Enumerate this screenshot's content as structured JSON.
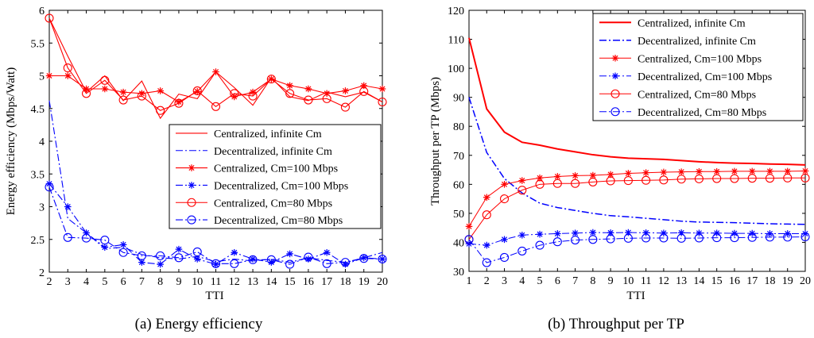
{
  "chart_data": [
    {
      "type": "line",
      "panel": "a",
      "caption": "(a)  Energy efficiency",
      "xlabel": "TTI",
      "ylabel": "Energy efficiency (Mbps/Watt)",
      "xlim": [
        2,
        20
      ],
      "ylim": [
        2,
        6
      ],
      "xticks": [
        2,
        3,
        4,
        5,
        6,
        7,
        8,
        9,
        10,
        11,
        12,
        13,
        14,
        15,
        16,
        17,
        18,
        19,
        20
      ],
      "yticks": [
        2,
        2.5,
        3,
        3.5,
        4,
        4.5,
        5,
        5.5,
        6
      ],
      "ytick_labels": [
        "2",
        "2.5",
        "3",
        "3.5",
        "4",
        "4.5",
        "5",
        "5.5",
        "6"
      ],
      "legend_position": "middle-right",
      "series": [
        {
          "name": "Centralized, infinite Cm",
          "color": "#ff0000",
          "dash": "solid",
          "marker": "none",
          "x": [
            2,
            3,
            4,
            5,
            6,
            7,
            8,
            9,
            10,
            11,
            12,
            13,
            14,
            15,
            16,
            17,
            18,
            19,
            20
          ],
          "y": [
            5.88,
            5.3,
            4.75,
            5.0,
            4.62,
            4.92,
            4.35,
            4.72,
            4.65,
            5.06,
            4.82,
            4.55,
            4.97,
            4.68,
            4.62,
            4.75,
            4.68,
            4.75,
            4.6
          ]
        },
        {
          "name": "Decentralized, infinite Cm",
          "color": "#0000ff",
          "dash": "dashdot",
          "marker": "none",
          "x": [
            2,
            3,
            4,
            5,
            6,
            7,
            8,
            9,
            10,
            11,
            12,
            13,
            14,
            15,
            16,
            17,
            18,
            19,
            20
          ],
          "y": [
            4.62,
            2.82,
            2.6,
            2.36,
            2.38,
            2.27,
            2.22,
            2.2,
            2.24,
            2.16,
            2.2,
            2.17,
            2.2,
            2.15,
            2.22,
            2.18,
            2.15,
            2.22,
            2.3
          ]
        },
        {
          "name": "Centralized, Cm=100 Mbps",
          "color": "#ff0000",
          "dash": "solid",
          "marker": "star",
          "x": [
            2,
            3,
            4,
            5,
            6,
            7,
            8,
            9,
            10,
            11,
            12,
            13,
            14,
            15,
            16,
            17,
            18,
            19,
            20
          ],
          "y": [
            5.0,
            5.0,
            4.8,
            4.8,
            4.75,
            4.73,
            4.77,
            4.6,
            4.76,
            5.06,
            4.68,
            4.75,
            4.95,
            4.85,
            4.8,
            4.73,
            4.77,
            4.85,
            4.8
          ]
        },
        {
          "name": "Decentralized, Cm=100 Mbps",
          "color": "#0000ff",
          "dash": "dashdot",
          "marker": "star",
          "x": [
            2,
            3,
            4,
            5,
            6,
            7,
            8,
            9,
            10,
            11,
            12,
            13,
            14,
            15,
            16,
            17,
            18,
            19,
            20
          ],
          "y": [
            3.35,
            3.0,
            2.6,
            2.38,
            2.42,
            2.15,
            2.12,
            2.35,
            2.2,
            2.12,
            2.3,
            2.2,
            2.15,
            2.28,
            2.2,
            2.3,
            2.12,
            2.22,
            2.2
          ]
        },
        {
          "name": "Centralized, Cm=80 Mbps",
          "color": "#ff0000",
          "dash": "solid",
          "marker": "circle",
          "x": [
            2,
            3,
            4,
            5,
            6,
            7,
            8,
            9,
            10,
            11,
            12,
            13,
            14,
            15,
            16,
            17,
            18,
            19,
            20
          ],
          "y": [
            5.88,
            5.12,
            4.73,
            4.93,
            4.63,
            4.69,
            4.47,
            4.58,
            4.77,
            4.53,
            4.73,
            4.69,
            4.95,
            4.73,
            4.63,
            4.65,
            4.52,
            4.76,
            4.6
          ]
        },
        {
          "name": "Decentralized, Cm=80 Mbps",
          "color": "#0000ff",
          "dash": "dashdot",
          "marker": "circle",
          "x": [
            2,
            3,
            4,
            5,
            6,
            7,
            8,
            9,
            10,
            11,
            12,
            13,
            14,
            15,
            16,
            17,
            18,
            19,
            20
          ],
          "y": [
            3.3,
            2.53,
            2.52,
            2.49,
            2.3,
            2.25,
            2.25,
            2.22,
            2.31,
            2.13,
            2.13,
            2.19,
            2.19,
            2.12,
            2.23,
            2.13,
            2.15,
            2.21,
            2.2
          ]
        }
      ]
    },
    {
      "type": "line",
      "panel": "b",
      "caption": "(b)  Throughput per TP",
      "xlabel": "TTI",
      "ylabel": "Throughput per TP (Mbps)",
      "xlim": [
        1,
        20
      ],
      "ylim": [
        30,
        120
      ],
      "xticks": [
        1,
        2,
        3,
        4,
        5,
        6,
        7,
        8,
        9,
        10,
        11,
        12,
        13,
        14,
        15,
        16,
        17,
        18,
        19,
        20
      ],
      "yticks": [
        30,
        40,
        50,
        60,
        70,
        80,
        90,
        100,
        110,
        120
      ],
      "ytick_labels": [
        "30",
        "40",
        "50",
        "60",
        "70",
        "80",
        "90",
        "100",
        "110",
        "120"
      ],
      "legend_position": "top-right",
      "series": [
        {
          "name": "Centralized, infinite Cm",
          "color": "#ff0000",
          "dash": "solid",
          "marker": "none",
          "width": 2,
          "x": [
            1,
            2,
            3,
            4,
            5,
            6,
            7,
            8,
            9,
            10,
            11,
            12,
            13,
            14,
            15,
            16,
            17,
            18,
            19,
            20
          ],
          "y": [
            110.5,
            86,
            78,
            74.5,
            73.5,
            72.2,
            71.2,
            70.2,
            69.5,
            69,
            68.8,
            68.6,
            68.2,
            67.8,
            67.5,
            67.3,
            67.2,
            67,
            66.9,
            66.7
          ]
        },
        {
          "name": "Decentralized, infinite Cm",
          "color": "#0000ff",
          "dash": "dashdot",
          "marker": "none",
          "width": 1.5,
          "x": [
            1,
            2,
            3,
            4,
            5,
            6,
            7,
            8,
            9,
            10,
            11,
            12,
            13,
            14,
            15,
            16,
            17,
            18,
            19,
            20
          ],
          "y": [
            90,
            71,
            62,
            57,
            53.5,
            52,
            51,
            50,
            49.2,
            48.8,
            48.3,
            47.8,
            47.3,
            47,
            46.9,
            46.8,
            46.6,
            46.4,
            46.3,
            46.2
          ]
        },
        {
          "name": "Centralized, Cm=100 Mbps",
          "color": "#ff0000",
          "dash": "solid",
          "marker": "star",
          "width": 1,
          "x": [
            1,
            2,
            3,
            4,
            5,
            6,
            7,
            8,
            9,
            10,
            11,
            12,
            13,
            14,
            15,
            16,
            17,
            18,
            19,
            20
          ],
          "y": [
            45.5,
            55.5,
            60,
            61.3,
            62.2,
            62.7,
            63,
            63.1,
            63.4,
            63.8,
            64,
            64.2,
            64.3,
            64.4,
            64.4,
            64.5,
            64.5,
            64.5,
            64.5,
            64.6
          ]
        },
        {
          "name": "Decentralized, Cm=100 Mbps",
          "color": "#0000ff",
          "dash": "dashdot",
          "marker": "star",
          "width": 1,
          "x": [
            1,
            2,
            3,
            4,
            5,
            6,
            7,
            8,
            9,
            10,
            11,
            12,
            13,
            14,
            15,
            16,
            17,
            18,
            19,
            20
          ],
          "y": [
            39.5,
            39,
            41,
            42.5,
            42.8,
            43,
            43.2,
            43.4,
            43.3,
            43.4,
            43.3,
            43.2,
            43.3,
            43.2,
            43.2,
            43.1,
            43.1,
            43,
            43,
            43
          ]
        },
        {
          "name": "Centralized, Cm=80 Mbps",
          "color": "#ff0000",
          "dash": "solid",
          "marker": "circle",
          "width": 1,
          "x": [
            1,
            2,
            3,
            4,
            5,
            6,
            7,
            8,
            9,
            10,
            11,
            12,
            13,
            14,
            15,
            16,
            17,
            18,
            19,
            20
          ],
          "y": [
            41,
            49.5,
            55,
            58,
            60,
            60.3,
            60.3,
            60.8,
            61.2,
            61.3,
            61.4,
            61.5,
            61.8,
            61.9,
            62,
            62,
            62.1,
            62.1,
            62.2,
            62.2
          ]
        },
        {
          "name": "Decentralized, Cm=80 Mbps",
          "color": "#0000ff",
          "dash": "dashdot",
          "marker": "circle",
          "width": 1,
          "x": [
            1,
            2,
            3,
            4,
            5,
            6,
            7,
            8,
            9,
            10,
            11,
            12,
            13,
            14,
            15,
            16,
            17,
            18,
            19,
            20
          ],
          "y": [
            41,
            33,
            34.8,
            37,
            39,
            40.2,
            40.8,
            41,
            41.2,
            41.4,
            41.5,
            41.5,
            41.4,
            41.5,
            41.6,
            41.6,
            41.7,
            41.8,
            41.8,
            41.9
          ]
        }
      ]
    }
  ]
}
